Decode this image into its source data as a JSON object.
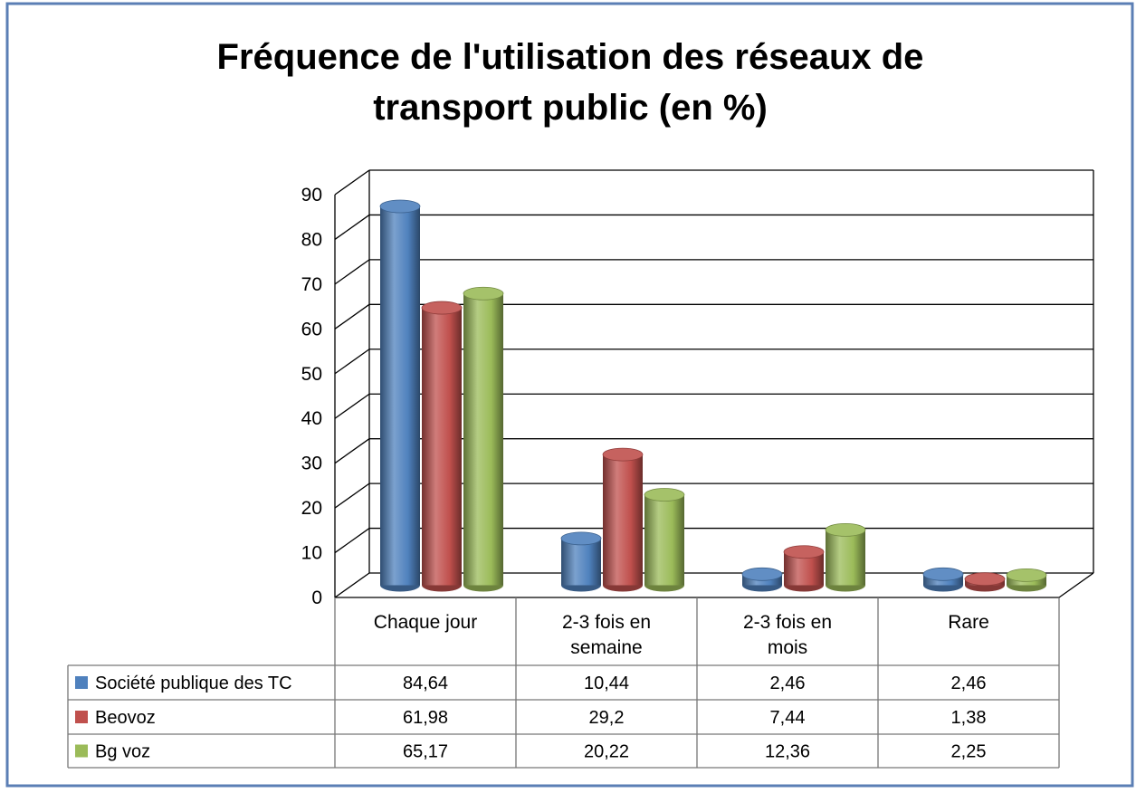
{
  "chart_data": {
    "type": "bar",
    "title": "Fréquence de l'utilisation des réseaux de transport public (en %)",
    "categories": [
      "Chaque jour",
      "2-3 fois en semaine",
      "2-3 fois en mois",
      "Rare"
    ],
    "series": [
      {
        "name": "Société publique des TC",
        "color": "#4f81bd",
        "values": [
          84.64,
          10.44,
          2.46,
          2.46
        ],
        "value_labels": [
          "84,64",
          "10,44",
          "2,46",
          "2,46"
        ]
      },
      {
        "name": "Beovoz",
        "color": "#c0504d",
        "values": [
          61.98,
          29.2,
          7.44,
          1.38
        ],
        "value_labels": [
          "61,98",
          "29,2",
          "7,44",
          "1,38"
        ]
      },
      {
        "name": "Bg voz",
        "color": "#9bbb59",
        "values": [
          65.17,
          20.22,
          12.36,
          2.25
        ],
        "value_labels": [
          "65,17",
          "20,22",
          "12,36",
          "2,25"
        ]
      }
    ],
    "ylim": [
      0,
      90
    ],
    "yticks": [
      0,
      10,
      20,
      30,
      40,
      50,
      60,
      70,
      80,
      90
    ],
    "grid": true
  }
}
